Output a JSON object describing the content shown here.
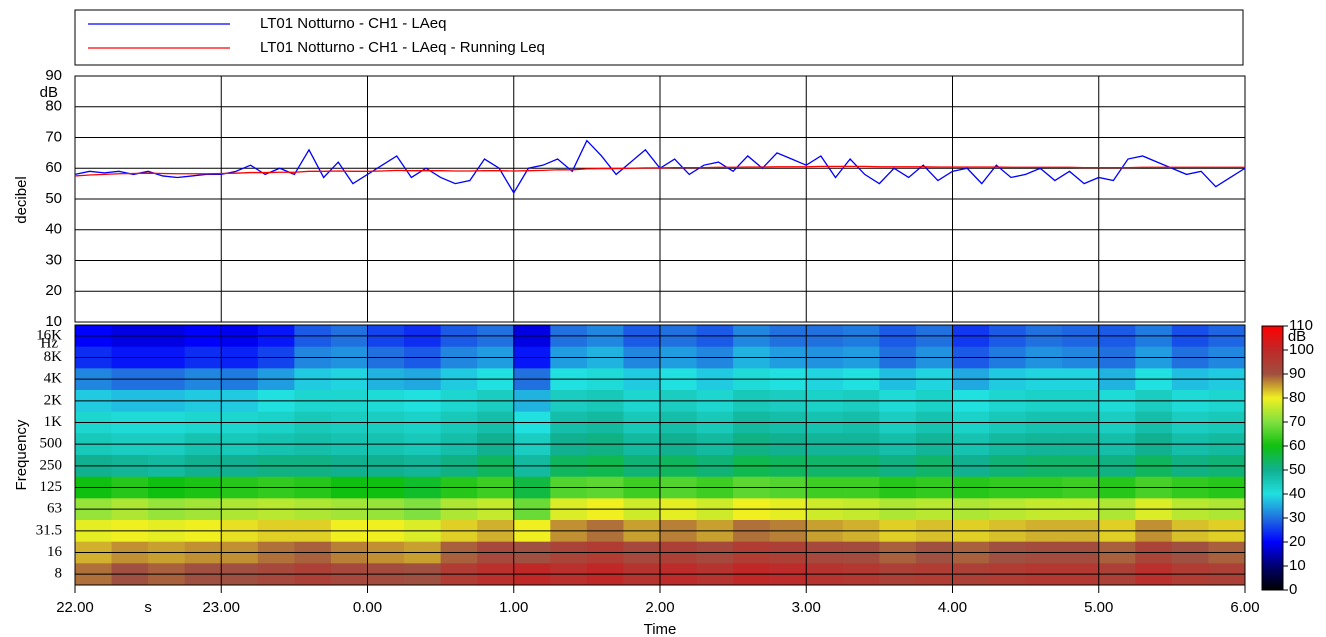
{
  "chart_data": [
    {
      "type": "line",
      "ylabel": "decibel",
      "y_unit": "dB",
      "xlim": [
        22,
        30
      ],
      "xticks": [
        22,
        23,
        24,
        25,
        26,
        27,
        28,
        29,
        30
      ],
      "ylim": [
        10,
        90
      ],
      "yticks": [
        10,
        20,
        30,
        40,
        50,
        60,
        70,
        80,
        90
      ],
      "grid": true,
      "x": [
        22.0,
        22.1,
        22.2,
        22.3,
        22.4,
        22.5,
        22.6,
        22.7,
        22.8,
        22.9,
        23.0,
        23.1,
        23.2,
        23.3,
        23.4,
        23.5,
        23.6,
        23.7,
        23.8,
        23.9,
        24.0,
        24.1,
        24.2,
        24.3,
        24.4,
        24.5,
        24.6,
        24.7,
        24.8,
        24.9,
        25.0,
        25.1,
        25.2,
        25.3,
        25.4,
        25.5,
        25.6,
        25.7,
        25.8,
        25.9,
        26.0,
        26.1,
        26.2,
        26.3,
        26.4,
        26.5,
        26.6,
        26.7,
        26.8,
        26.9,
        27.0,
        27.1,
        27.2,
        27.3,
        27.4,
        27.5,
        27.6,
        27.7,
        27.8,
        27.9,
        28.0,
        28.1,
        28.2,
        28.3,
        28.4,
        28.5,
        28.6,
        28.7,
        28.8,
        28.9,
        29.0,
        29.1,
        29.2,
        29.3,
        29.4,
        29.5,
        29.6,
        29.7,
        29.8,
        29.9,
        30.0
      ],
      "series": [
        {
          "name": "LT01 Notturno - CH1 - LAeq",
          "color": "#0000ff",
          "values": [
            58,
            59,
            58.5,
            59,
            58,
            59,
            57.5,
            57,
            57.5,
            58,
            58,
            59,
            61,
            58,
            60,
            58,
            66,
            57,
            62,
            55,
            58,
            61,
            64,
            57,
            60,
            57,
            55,
            56,
            63,
            60,
            52,
            60,
            61,
            63,
            59,
            69,
            64,
            58,
            62,
            66,
            60,
            63,
            58,
            61,
            62,
            59,
            64,
            60,
            65,
            63,
            61,
            64,
            57,
            63,
            58,
            55,
            60,
            57,
            61,
            56,
            59,
            60,
            55,
            61,
            57,
            58,
            60,
            56,
            59,
            55,
            57,
            56,
            63,
            64,
            62,
            60,
            58,
            59,
            54,
            57,
            60
          ]
        },
        {
          "name": "LT01 Notturno - CH1 - LAeq - Running Leq",
          "color": "#ff0000",
          "values": [
            57.5,
            57.8,
            58,
            58.2,
            58.3,
            58.4,
            58.3,
            58.2,
            58.2,
            58.2,
            58.3,
            58.4,
            58.6,
            58.6,
            58.7,
            58.7,
            59,
            59,
            59.1,
            59,
            59,
            59.1,
            59.3,
            59.2,
            59.2,
            59.2,
            59.1,
            59.1,
            59.2,
            59.2,
            59.1,
            59.2,
            59.3,
            59.5,
            59.5,
            59.8,
            59.9,
            59.9,
            60,
            60.1,
            60.1,
            60.2,
            60.2,
            60.2,
            60.3,
            60.3,
            60.4,
            60.4,
            60.5,
            60.5,
            60.5,
            60.6,
            60.6,
            60.6,
            60.6,
            60.5,
            60.5,
            60.5,
            60.5,
            60.4,
            60.4,
            60.4,
            60.4,
            60.4,
            60.3,
            60.3,
            60.3,
            60.3,
            60.3,
            60.2,
            60.2,
            60.2,
            60.2,
            60.3,
            60.3,
            60.3,
            60.3,
            60.3,
            60.3,
            60.3,
            60.3
          ]
        }
      ]
    },
    {
      "type": "heatmap",
      "xlabel": "Time",
      "x_unit": "s",
      "ylabel": "Frequency",
      "y_unit": "Hz",
      "xlim": [
        22,
        30
      ],
      "xticks": [
        {
          "value": 22,
          "label": "22.00"
        },
        {
          "value": 23,
          "label": "23.00"
        },
        {
          "value": 24,
          "label": "0.00"
        },
        {
          "value": 25,
          "label": "1.00"
        },
        {
          "value": 26,
          "label": "2.00"
        },
        {
          "value": 27,
          "label": "3.00"
        },
        {
          "value": 28,
          "label": "4.00"
        },
        {
          "value": 29,
          "label": "5.00"
        },
        {
          "value": 30,
          "label": "6.00"
        }
      ],
      "x": [
        22.125,
        22.375,
        22.625,
        22.875,
        23.125,
        23.375,
        23.625,
        23.875,
        24.125,
        24.375,
        24.625,
        24.875,
        25.125,
        25.375,
        25.625,
        25.875,
        26.125,
        26.375,
        26.625,
        26.875,
        27.125,
        27.375,
        27.625,
        27.875,
        28.125,
        28.375,
        28.625,
        28.875,
        29.125,
        29.375,
        29.625,
        29.875
      ],
      "y": [
        "16K",
        "8K",
        "4K",
        "2K",
        "1K",
        "500",
        "250",
        "125",
        "63",
        "31.5",
        "16",
        "8"
      ],
      "z": [
        [
          20,
          18,
          18,
          20,
          19,
          22,
          28,
          30,
          26,
          24,
          28,
          30,
          18,
          30,
          32,
          28,
          30,
          28,
          32,
          30,
          30,
          31,
          28,
          30,
          25,
          28,
          30,
          29,
          28,
          31,
          27,
          29
        ],
        [
          24,
          22,
          22,
          24,
          23,
          26,
          32,
          33,
          30,
          28,
          32,
          34,
          22,
          34,
          36,
          32,
          34,
          32,
          36,
          34,
          33,
          34,
          30,
          33,
          28,
          31,
          33,
          32,
          30,
          34,
          30,
          32
        ],
        [
          32,
          30,
          30,
          32,
          31,
          34,
          38,
          39,
          36,
          35,
          38,
          40,
          30,
          40,
          41,
          38,
          40,
          38,
          41,
          40,
          39,
          40,
          37,
          39,
          35,
          38,
          39,
          39,
          36,
          40,
          37,
          38
        ],
        [
          38,
          37,
          37,
          38,
          38,
          40,
          42,
          42,
          41,
          40,
          42,
          44,
          36,
          44,
          45,
          42,
          44,
          42,
          45,
          44,
          43,
          44,
          41,
          43,
          40,
          42,
          43,
          43,
          41,
          44,
          41,
          42
        ],
        [
          42,
          41,
          41,
          42,
          42,
          43,
          45,
          44,
          44,
          43,
          45,
          47,
          40,
          47,
          48,
          45,
          47,
          45,
          48,
          47,
          46,
          47,
          44,
          46,
          43,
          45,
          46,
          46,
          44,
          47,
          44,
          45
        ],
        [
          45,
          44,
          44,
          46,
          45,
          46,
          47,
          46,
          46,
          45,
          47,
          50,
          44,
          50,
          51,
          48,
          50,
          48,
          51,
          50,
          49,
          49,
          47,
          49,
          46,
          48,
          49,
          49,
          47,
          50,
          47,
          48
        ],
        [
          50,
          49,
          48,
          50,
          50,
          51,
          51,
          50,
          50,
          49,
          51,
          54,
          48,
          54,
          55,
          52,
          54,
          52,
          55,
          54,
          53,
          53,
          51,
          53,
          50,
          52,
          53,
          53,
          51,
          54,
          51,
          52
        ],
        [
          60,
          62,
          60,
          61,
          62,
          63,
          62,
          60,
          60,
          58,
          62,
          64,
          56,
          66,
          67,
          64,
          66,
          64,
          67,
          66,
          64,
          64,
          62,
          63,
          62,
          63,
          63,
          64,
          62,
          65,
          63,
          62
        ],
        [
          72,
          74,
          72,
          73,
          74,
          75,
          74,
          73,
          72,
          70,
          74,
          76,
          68,
          78,
          80,
          77,
          79,
          77,
          80,
          79,
          77,
          76,
          74,
          75,
          74,
          75,
          76,
          76,
          74,
          78,
          75,
          74
        ],
        [
          79,
          80,
          79,
          80,
          81,
          82,
          82,
          80,
          80,
          78,
          82,
          84,
          80,
          86,
          88,
          85,
          87,
          85,
          88,
          87,
          85,
          84,
          82,
          83,
          82,
          83,
          84,
          84,
          82,
          86,
          83,
          82
        ],
        [
          84,
          86,
          85,
          86,
          86,
          88,
          89,
          87,
          86,
          85,
          89,
          92,
          90,
          93,
          95,
          92,
          94,
          92,
          95,
          94,
          92,
          91,
          89,
          90,
          89,
          90,
          91,
          91,
          89,
          93,
          90,
          89
        ],
        [
          88,
          90,
          89,
          90,
          90,
          92,
          94,
          92,
          91,
          90,
          95,
          98,
          100,
          98,
          100,
          97,
          99,
          97,
          100,
          99,
          97,
          96,
          94,
          95,
          94,
          95,
          96,
          96,
          94,
          98,
          95,
          94
        ]
      ],
      "zlim": [
        0,
        110
      ],
      "zticks": [
        0,
        10,
        20,
        30,
        40,
        50,
        60,
        70,
        80,
        90,
        100,
        110
      ],
      "z_unit": "dB",
      "colorscale": [
        "#000000",
        "#000070",
        "#0000ff",
        "#2070e0",
        "#20e0e0",
        "#10b090",
        "#10c010",
        "#80e040",
        "#f0f020",
        "#a05040",
        "#c02828",
        "#ff0000"
      ]
    }
  ]
}
